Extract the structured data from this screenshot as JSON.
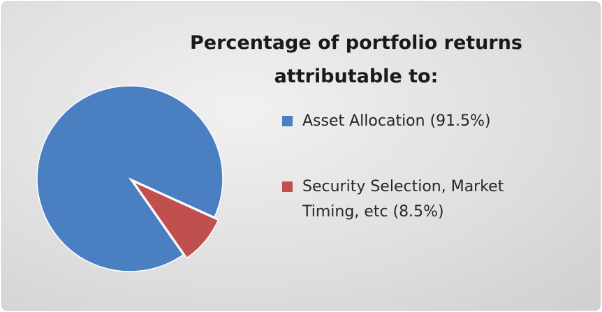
{
  "chart_data": {
    "type": "pie",
    "title": "Percentage of portfolio returns attributable to:",
    "categories": [
      "Asset Allocation (91.5%)",
      "Security Selection, Market Timing, etc (8.5%)"
    ],
    "values": [
      91.5,
      8.5
    ],
    "colors": [
      "#4a7fc1",
      "#c0504d"
    ]
  }
}
